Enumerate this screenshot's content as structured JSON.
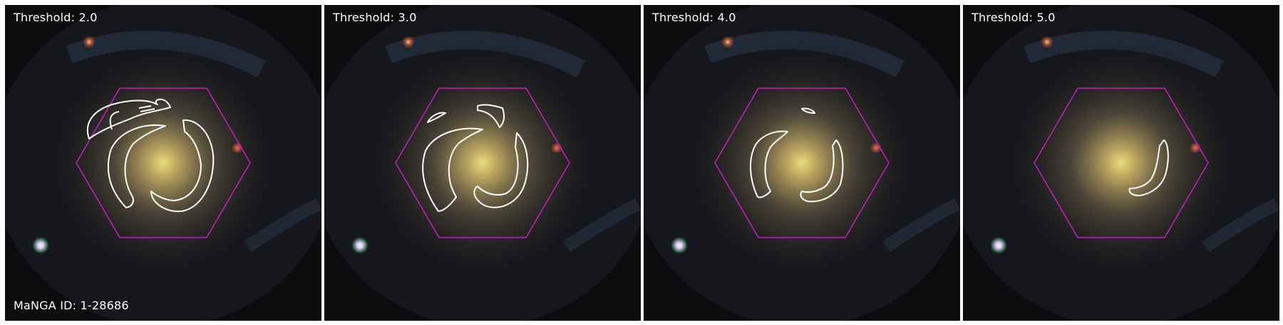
{
  "figure": {
    "panels": [
      {
        "label": "Threshold: 2.0"
      },
      {
        "label": "Threshold: 3.0"
      },
      {
        "label": "Threshold: 4.0"
      },
      {
        "label": "Threshold: 5.0"
      }
    ],
    "id_label": "MaNGA ID: 1-28686"
  },
  "colors": {
    "hexagon": "#c21fc2",
    "contour": "#ffffff",
    "background": "#0b0c0e",
    "galaxy_core": "#e6df7a",
    "galaxy_halo": "#7a6a48"
  }
}
